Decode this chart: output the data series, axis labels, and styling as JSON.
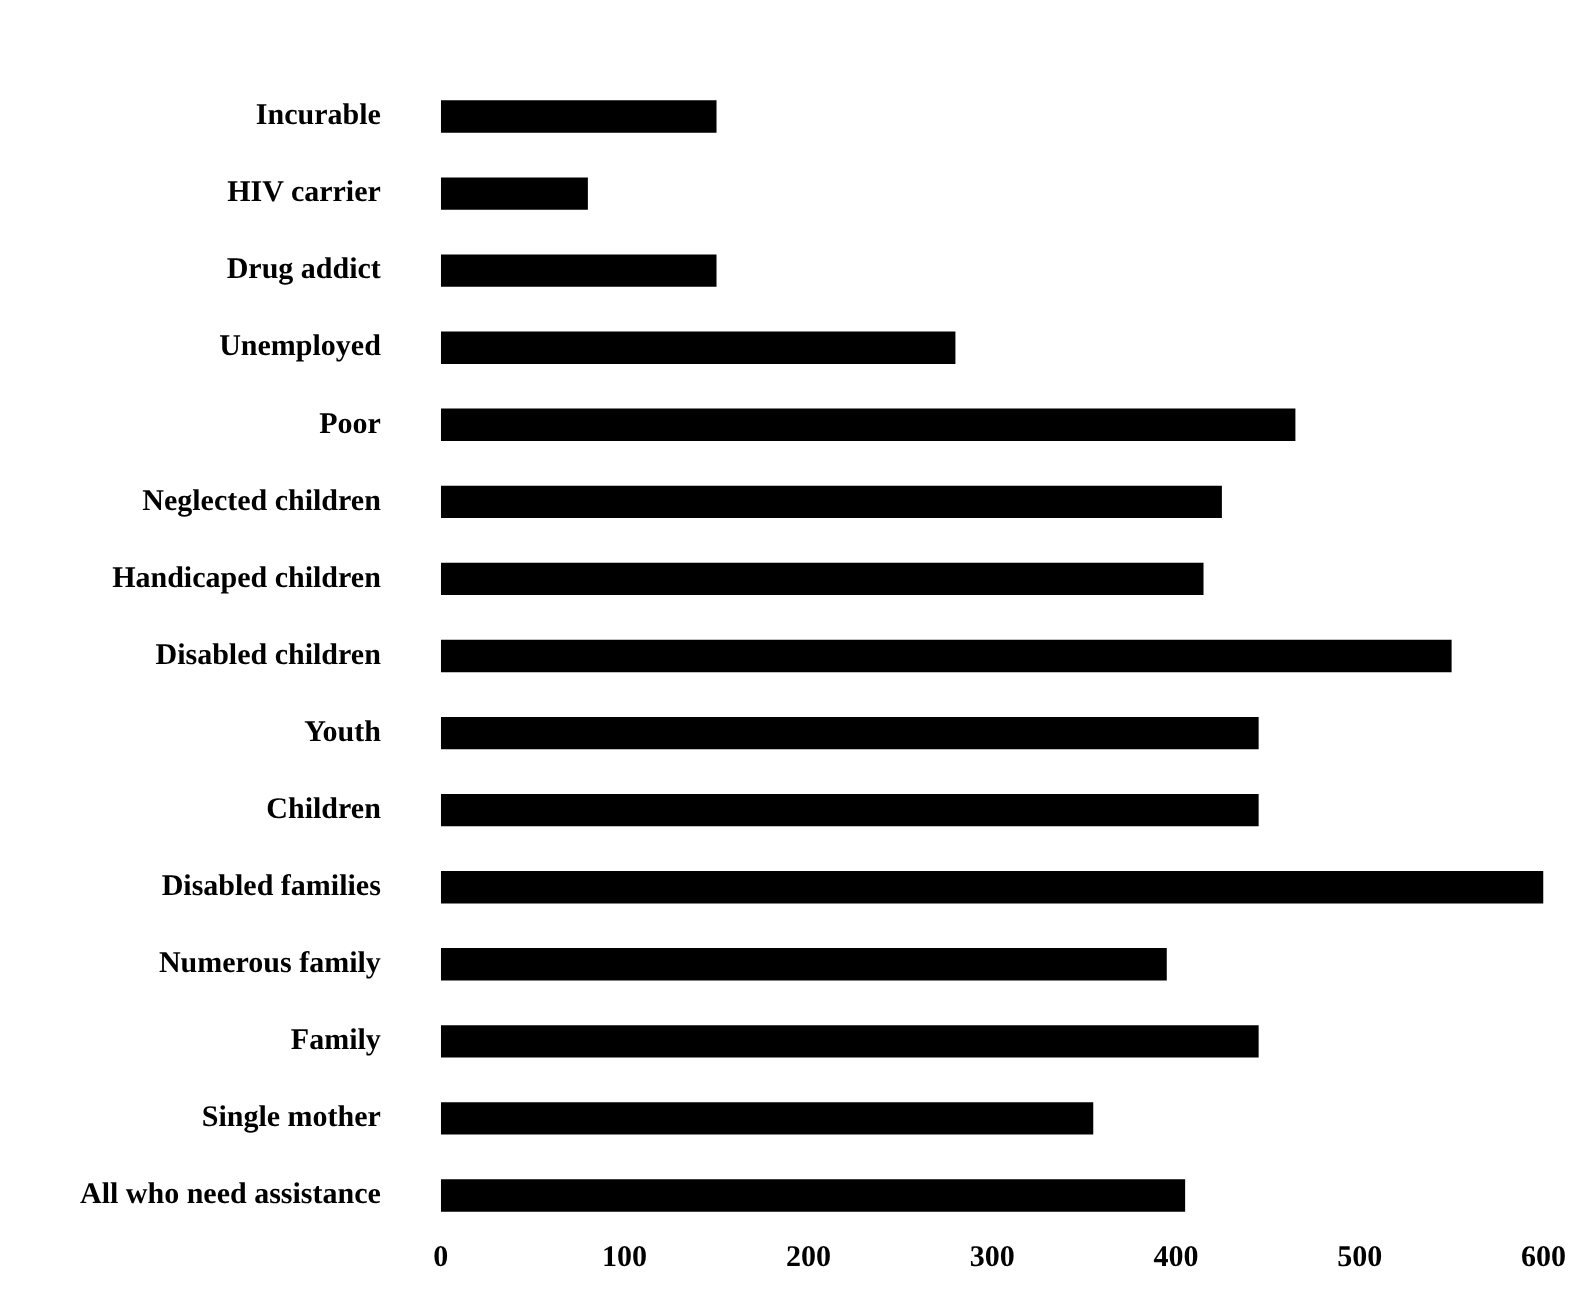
{
  "chart_data": {
    "type": "bar",
    "orientation": "horizontal",
    "categories": [
      "Incurable",
      "HIV carrier",
      "Drug addict",
      "Unemployed",
      "Poor",
      "Neglected children",
      "Handicaped children",
      "Disabled children",
      "Youth",
      "Children",
      "Disabled families",
      "Numerous family",
      "Family",
      "Single mother",
      "All who need assistance"
    ],
    "values": [
      150,
      80,
      150,
      280,
      465,
      425,
      415,
      550,
      445,
      445,
      600,
      395,
      445,
      355,
      405
    ],
    "color": "#000000",
    "xlim": [
      0,
      600
    ],
    "xticks": [
      0,
      100,
      200,
      300,
      400,
      500,
      600
    ],
    "grid": false,
    "legend": false
  }
}
